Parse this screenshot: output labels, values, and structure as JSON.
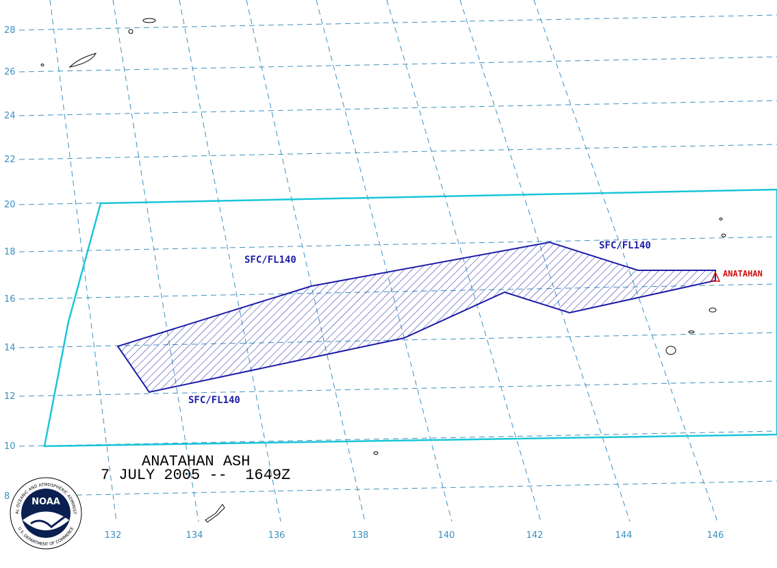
{
  "map": {
    "title": "ANATAHAN ASH",
    "date": "7 JULY 2005 --  1649Z",
    "lat_labels": [
      28,
      26,
      24,
      22,
      20,
      18,
      16,
      14,
      12,
      10,
      8
    ],
    "lon_labels": [
      132,
      134,
      136,
      138,
      140,
      142,
      144,
      146
    ],
    "annotations": [
      "SFC/FL140",
      "SFC/FL140",
      "SFC/FL140"
    ],
    "volcano": "ANATAHAN",
    "logo": {
      "name": "NOAA",
      "ring_top": "NATIONAL OCEANIC AND ATMOSPHERIC ADMINISTRATION",
      "ring_bottom": "U.S. DEPARTMENT OF COMMERCE"
    }
  }
}
